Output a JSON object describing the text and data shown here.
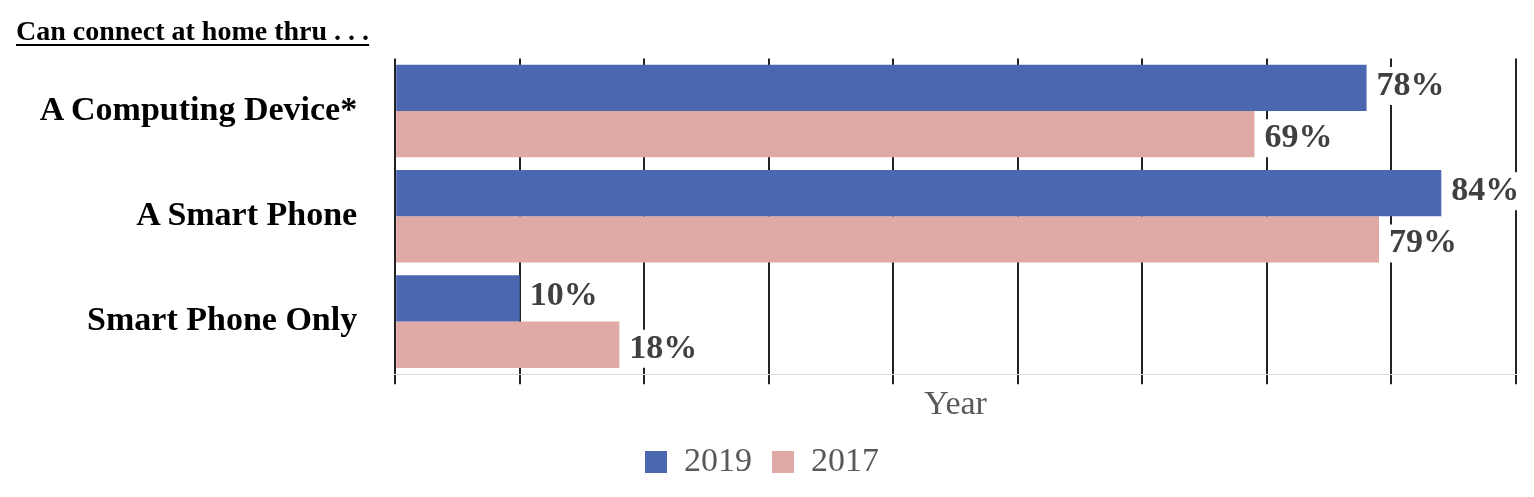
{
  "chart_data": {
    "type": "bar",
    "orientation": "horizontal",
    "title": "Can connect at home thru . . .",
    "xlabel": "Year",
    "categories": [
      "A Computing Device*",
      "A Smart Phone",
      "Smart Phone Only"
    ],
    "series": [
      {
        "name": "2019",
        "color": "#4a67b0",
        "values": [
          78,
          84,
          10
        ],
        "value_labels": [
          "78%",
          "84%",
          "10%"
        ]
      },
      {
        "name": "2017",
        "color": "#dfa9a5",
        "values": [
          69,
          79,
          18
        ],
        "value_labels": [
          "69%",
          "79%",
          "18%"
        ]
      }
    ],
    "xlim": [
      0,
      90
    ],
    "xticks": [
      {
        "value": 0,
        "label": null
      },
      {
        "value": 10,
        "label": null
      },
      {
        "value": 20,
        "label": null
      },
      {
        "value": 30,
        "label": null
      },
      {
        "value": 40,
        "label": null
      },
      {
        "value": 50,
        "label": null
      },
      {
        "value": 60,
        "label": null
      },
      {
        "value": 70,
        "label": null
      },
      {
        "value": 80,
        "label": null
      },
      {
        "value": 90,
        "label": null
      }
    ],
    "tick_labels": "y",
    "grid": "x",
    "legend": "bottom"
  }
}
